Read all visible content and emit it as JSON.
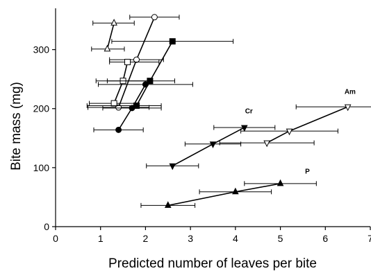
{
  "chart_data": {
    "type": "scatter",
    "title": "",
    "xlabel": "Predicted number of leaves per bite",
    "ylabel": "Bite mass (mg)",
    "xlim": [
      0,
      7
    ],
    "ylim": [
      0,
      370
    ],
    "xticks": [
      "0",
      "1",
      "2",
      "3",
      "4",
      "5",
      "6",
      "7"
    ],
    "yticks": [
      "0",
      "100",
      "200",
      "300"
    ],
    "grid": false,
    "legend": "none",
    "annotations": [
      {
        "text": "Am",
        "x": 6.55,
        "y": 225
      },
      {
        "text": "Cr",
        "x": 4.3,
        "y": 192
      },
      {
        "text": "P",
        "x": 5.6,
        "y": 90
      }
    ],
    "series": [
      {
        "marker": "open-triangle-up",
        "color": "#000000",
        "points": [
          {
            "x": 1.15,
            "y": 301,
            "xerr_lo": 0.35,
            "xerr_hi": 0.38
          },
          {
            "x": 1.3,
            "y": 345,
            "xerr_lo": 0.47,
            "xerr_hi": 0.45
          }
        ]
      },
      {
        "marker": "open-circle",
        "color": "#000000",
        "points": [
          {
            "x": 1.4,
            "y": 202,
            "xerr_lo": 0.68,
            "xerr_hi": 0.68
          },
          {
            "x": 1.8,
            "y": 283,
            "xerr_lo": 0.6,
            "xerr_hi": 0.6
          },
          {
            "x": 2.2,
            "y": 355,
            "xerr_lo": 0.55,
            "xerr_hi": 0.55
          }
        ]
      },
      {
        "marker": "open-square",
        "color": "#000000",
        "points": [
          {
            "x": 1.3,
            "y": 209,
            "xerr_lo": 0.55,
            "xerr_hi": 0.55
          },
          {
            "x": 1.5,
            "y": 247,
            "xerr_lo": 0.6,
            "xerr_hi": 0.6
          },
          {
            "x": 1.6,
            "y": 279,
            "xerr_lo": 0.4,
            "xerr_hi": 0.7
          }
        ]
      },
      {
        "marker": "filled-square",
        "color": "#000000",
        "points": [
          {
            "x": 1.8,
            "y": 205,
            "xerr_lo": 1.1,
            "xerr_hi": 0.55
          },
          {
            "x": 2.1,
            "y": 247,
            "xerr_lo": 0.95,
            "xerr_hi": 0.55
          },
          {
            "x": 2.6,
            "y": 314,
            "xerr_lo": 1.35,
            "xerr_hi": 1.35
          }
        ]
      },
      {
        "marker": "filled-circle",
        "color": "#000000",
        "points": [
          {
            "x": 1.4,
            "y": 164,
            "xerr_lo": 0.55,
            "xerr_hi": 0.55
          },
          {
            "x": 1.7,
            "y": 201,
            "xerr_lo": 0.65,
            "xerr_hi": 0.65
          },
          {
            "x": 2.0,
            "y": 241,
            "xerr_lo": 1.05,
            "xerr_hi": 1.05
          }
        ]
      },
      {
        "marker": "filled-triangle-down",
        "color": "#000000",
        "points": [
          {
            "x": 2.6,
            "y": 103,
            "xerr_lo": 0.58,
            "xerr_hi": 0.58
          },
          {
            "x": 3.5,
            "y": 140,
            "xerr_lo": 0.62,
            "xerr_hi": 0.62
          },
          {
            "x": 4.2,
            "y": 168,
            "xerr_lo": 0.68,
            "xerr_hi": 0.68
          }
        ]
      },
      {
        "marker": "open-triangle-down",
        "color": "#000000",
        "points": [
          {
            "x": 4.7,
            "y": 142,
            "xerr_lo": 1.05,
            "xerr_hi": 1.05
          },
          {
            "x": 5.2,
            "y": 162,
            "xerr_lo": 1.08,
            "xerr_hi": 1.08
          },
          {
            "x": 6.5,
            "y": 203,
            "xerr_lo": 1.15,
            "xerr_hi": 1.15
          }
        ]
      },
      {
        "marker": "filled-triangle-up",
        "color": "#000000",
        "points": [
          {
            "x": 2.5,
            "y": 36,
            "xerr_lo": 0.6,
            "xerr_hi": 0.6
          },
          {
            "x": 4.0,
            "y": 59,
            "xerr_lo": 0.8,
            "xerr_hi": 0.8
          },
          {
            "x": 5.0,
            "y": 73,
            "xerr_lo": 0.8,
            "xerr_hi": 0.8
          }
        ]
      }
    ]
  }
}
